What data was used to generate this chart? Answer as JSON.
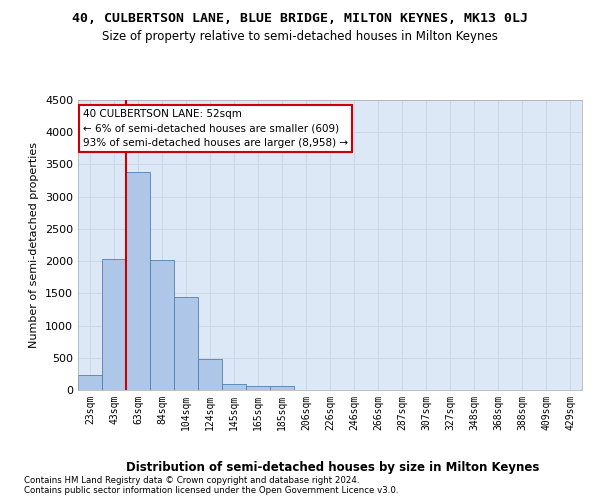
{
  "title": "40, CULBERTSON LANE, BLUE BRIDGE, MILTON KEYNES, MK13 0LJ",
  "subtitle": "Size of property relative to semi-detached houses in Milton Keynes",
  "xlabel": "Distribution of semi-detached houses by size in Milton Keynes",
  "ylabel": "Number of semi-detached properties",
  "footnote1": "Contains HM Land Registry data © Crown copyright and database right 2024.",
  "footnote2": "Contains public sector information licensed under the Open Government Licence v3.0.",
  "annotation_line1": "40 CULBERTSON LANE: 52sqm",
  "annotation_line2": "← 6% of semi-detached houses are smaller (609)",
  "annotation_line3": "93% of semi-detached houses are larger (8,958) →",
  "bar_color": "#aec6e8",
  "bar_edge_color": "#5080b0",
  "grid_color": "#c8d8ea",
  "bg_color": "#dce8f5",
  "annotation_box_color": "#ffffff",
  "annotation_box_edge": "#cc0000",
  "vline_color": "#cc0000",
  "categories": [
    "23sqm",
    "43sqm",
    "63sqm",
    "84sqm",
    "104sqm",
    "124sqm",
    "145sqm",
    "165sqm",
    "185sqm",
    "206sqm",
    "226sqm",
    "246sqm",
    "266sqm",
    "287sqm",
    "307sqm",
    "327sqm",
    "348sqm",
    "368sqm",
    "388sqm",
    "409sqm",
    "429sqm"
  ],
  "values": [
    240,
    2040,
    3380,
    2020,
    1440,
    480,
    95,
    60,
    55,
    0,
    0,
    0,
    0,
    0,
    0,
    0,
    0,
    0,
    0,
    0,
    0
  ],
  "ylim": [
    0,
    4500
  ],
  "yticks": [
    0,
    500,
    1000,
    1500,
    2000,
    2500,
    3000,
    3500,
    4000,
    4500
  ],
  "vline_x": 1.5,
  "figsize": [
    6.0,
    5.0
  ],
  "dpi": 100
}
